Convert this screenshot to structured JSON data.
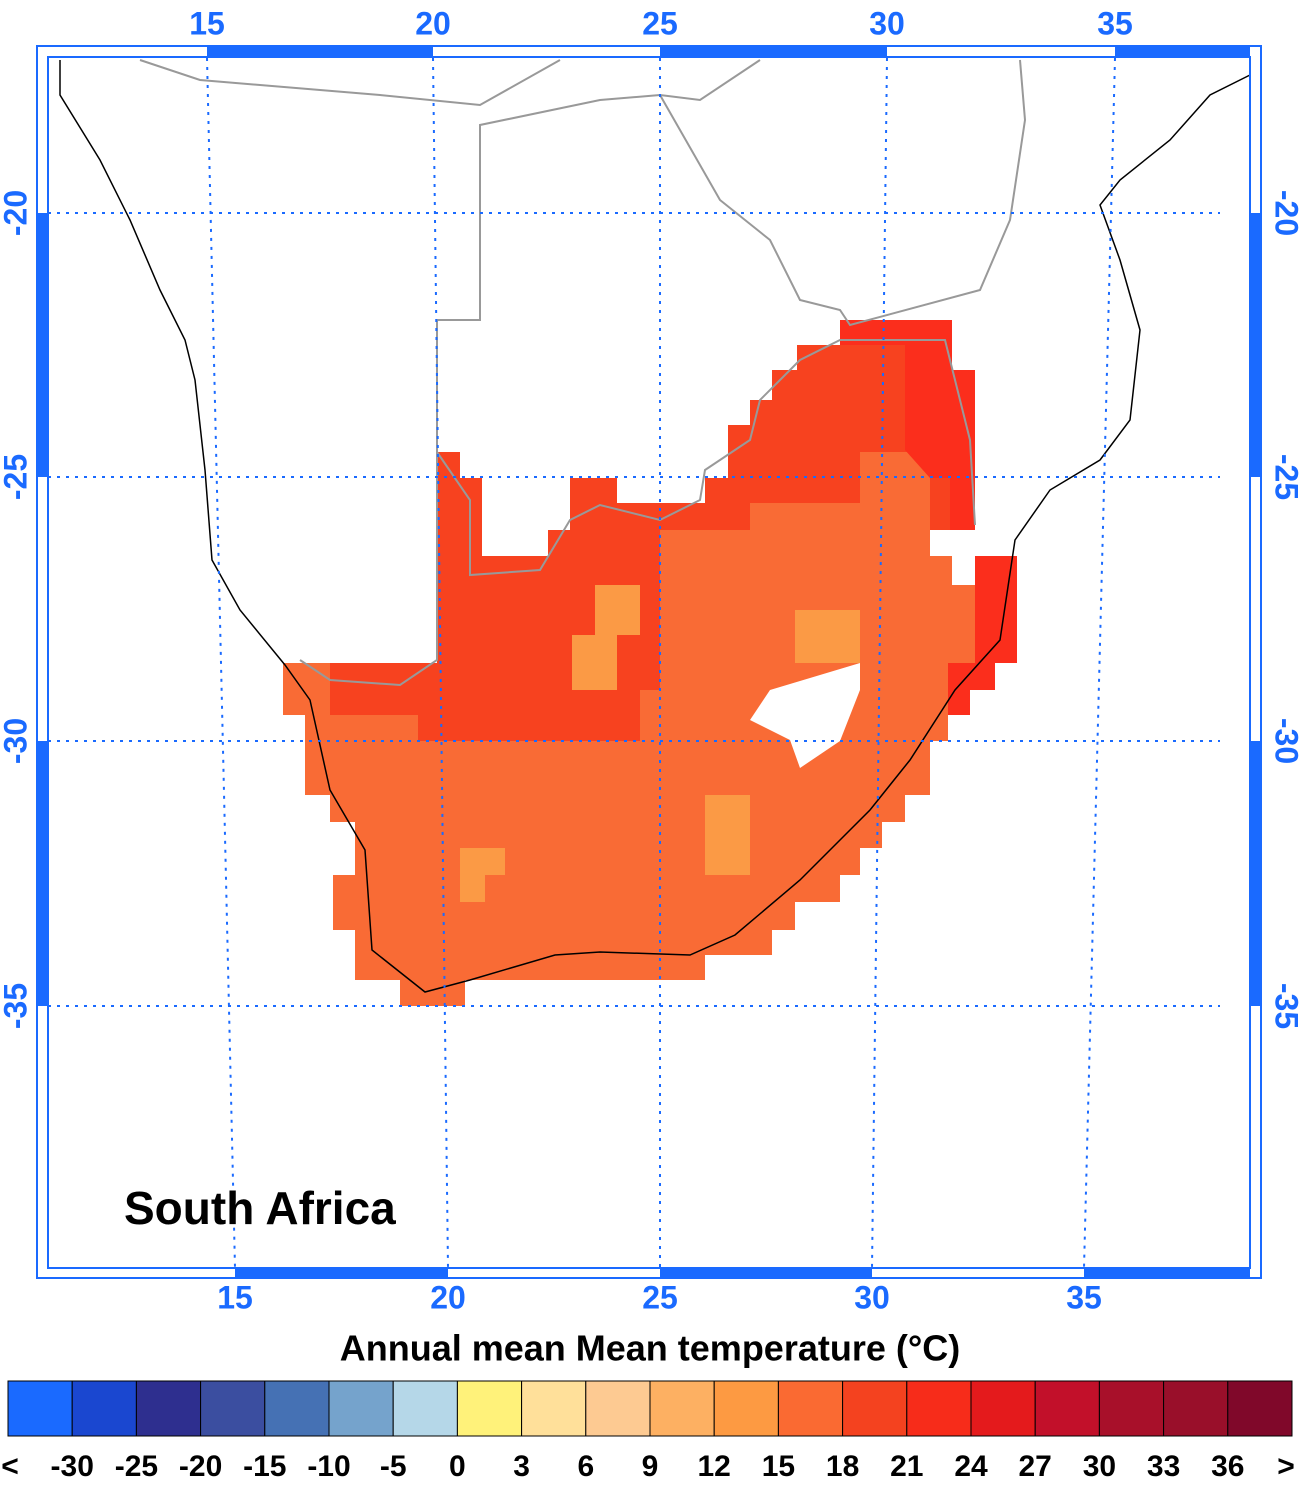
{
  "map": {
    "region": "South Africa",
    "top_labels": [
      "15",
      "20",
      "25",
      "30",
      "35"
    ],
    "bottom_labels": [
      "15",
      "20",
      "25",
      "30",
      "35"
    ],
    "left_labels": [
      "-20",
      "-25",
      "-30",
      "-35"
    ],
    "right_labels": [
      "-20",
      "-25",
      "-30",
      "-35"
    ]
  },
  "colorbar": {
    "title": "Annual mean Mean temperature (°C)",
    "colors": [
      "#1a6aff",
      "#1a47d0",
      "#2e2f8f",
      "#3b4ea0",
      "#4571b4",
      "#75a3cc",
      "#b5d7e8",
      "#fff27a",
      "#ffe09a",
      "#fdca92",
      "#fdb062",
      "#fd9a42",
      "#fa6a32",
      "#f4421f",
      "#f72c1a",
      "#e41a1c",
      "#c2102a",
      "#a8102a",
      "#990f2a",
      "#80082a"
    ],
    "labels": [
      "<",
      "-30",
      "-25",
      "-20",
      "-15",
      "-10",
      "-5",
      "0",
      "3",
      "6",
      "9",
      "12",
      "15",
      "18",
      "21",
      "24",
      "27",
      "30",
      "33",
      "36",
      ">"
    ]
  }
}
